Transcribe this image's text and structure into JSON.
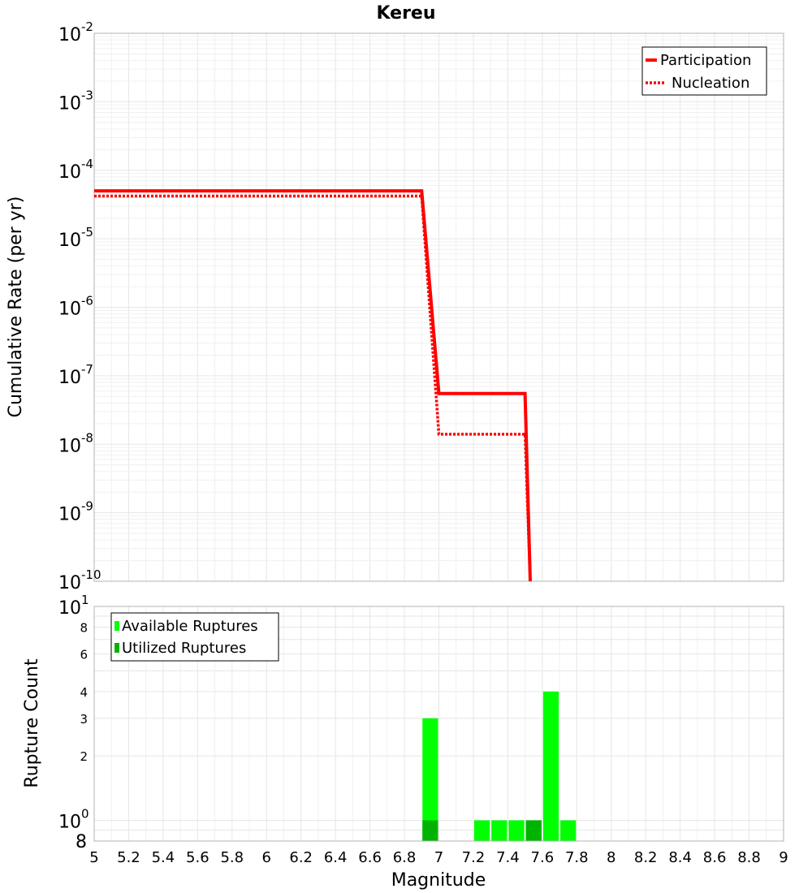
{
  "chart_data": [
    {
      "type": "line",
      "title": "Kereu",
      "xlabel": "",
      "ylabel": "Cumulative Rate (per yr)",
      "xlim": [
        5,
        9
      ],
      "ylim": [
        1e-10,
        0.01
      ],
      "yscale": "log",
      "grid": true,
      "legend_position": "top-right",
      "series": [
        {
          "name": "Participation",
          "style": "solid",
          "color": "#ff0000",
          "x": [
            5.0,
            6.9,
            7.0,
            7.5,
            7.53
          ],
          "y": [
            5e-05,
            5e-05,
            5.5e-08,
            5.5e-08,
            1e-10
          ]
        },
        {
          "name": "Nucleation",
          "style": "dotted",
          "color": "#ff0000",
          "x": [
            5.0,
            6.9,
            7.0,
            7.5,
            7.53
          ],
          "y": [
            4.2e-05,
            4.2e-05,
            1.4e-08,
            1.4e-08,
            1e-10
          ]
        }
      ],
      "yticks": [
        {
          "base": "10",
          "exp": "-2"
        },
        {
          "base": "10",
          "exp": "-3"
        },
        {
          "base": "10",
          "exp": "-4"
        },
        {
          "base": "10",
          "exp": "-5"
        },
        {
          "base": "10",
          "exp": "-6"
        },
        {
          "base": "10",
          "exp": "-7"
        },
        {
          "base": "10",
          "exp": "-8"
        },
        {
          "base": "10",
          "exp": "-9"
        },
        {
          "base": "10",
          "exp": "-10"
        }
      ]
    },
    {
      "type": "bar",
      "xlabel": "Magnitude",
      "ylabel": "Rupture Count",
      "xlim": [
        5,
        9
      ],
      "ylim": [
        0.8,
        10
      ],
      "yscale": "log",
      "grid": true,
      "legend_position": "top-left",
      "bin_width": 0.1,
      "series": [
        {
          "name": "Available Ruptures",
          "color": "#00ff00",
          "x": [
            6.95,
            7.25,
            7.35,
            7.45,
            7.55,
            7.65,
            7.75
          ],
          "values": [
            3,
            1,
            1,
            1,
            1,
            4,
            1
          ]
        },
        {
          "name": "Utilized Ruptures",
          "color": "#00b300",
          "x": [
            6.95,
            7.55
          ],
          "values": [
            1,
            1
          ]
        }
      ],
      "yticks_major": [
        {
          "base": "10",
          "exp": "1",
          "value": 10
        },
        {
          "base": "10",
          "exp": "0",
          "value": 1
        }
      ],
      "yticks_minor": [
        {
          "label": "8",
          "value": 8
        },
        {
          "label": "6",
          "value": 6
        },
        {
          "label": "4",
          "value": 4
        },
        {
          "label": "3",
          "value": 3
        },
        {
          "label": "2",
          "value": 2
        }
      ],
      "ytick_bottom": {
        "label": "8",
        "value": 0.8
      },
      "xticks": [
        "5",
        "5.2",
        "5.4",
        "5.6",
        "5.8",
        "6",
        "6.2",
        "6.4",
        "6.6",
        "6.8",
        "7",
        "7.2",
        "7.4",
        "7.6",
        "7.8",
        "8",
        "8.2",
        "8.4",
        "8.6",
        "8.8",
        "9"
      ]
    }
  ]
}
